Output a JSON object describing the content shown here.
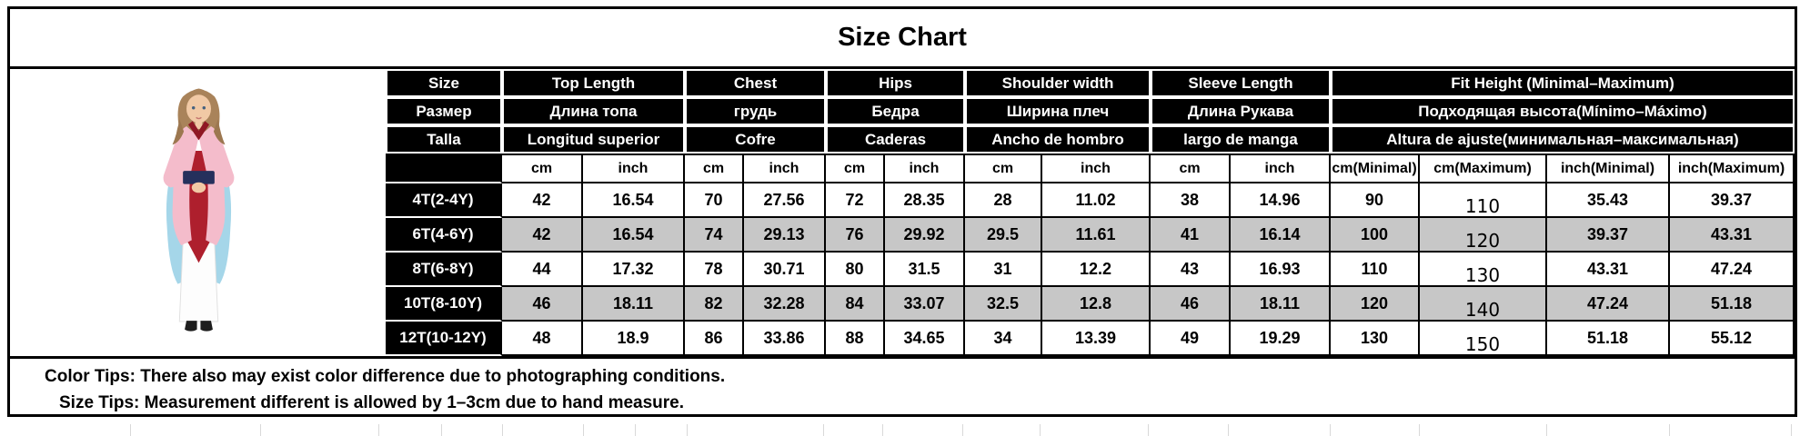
{
  "title": "Size Chart",
  "photo": {
    "alt": "Girl wearing pink, red and blue Mulan-style costume dress"
  },
  "table": {
    "header_rows": [
      {
        "size": "Size",
        "top_length": "Top Length",
        "chest": "Chest",
        "hips": "Hips",
        "shoulder": "Shoulder width",
        "sleeve": "Sleeve Length",
        "fit_height": "Fit Height (Minimal–Maximum)"
      },
      {
        "size": "Размер",
        "top_length": "Длина топа",
        "chest": "грудь",
        "hips": "Бедра",
        "shoulder": "Ширина плеч",
        "sleeve": "Длина Рукава",
        "fit_height": "Подходящая высота(Mínimo–Máximo)"
      },
      {
        "size": "Talla",
        "top_length": "Longitud superior",
        "chest": "Cofre",
        "hips": "Caderas",
        "shoulder": "Ancho de hombro",
        "sleeve": "largo de manga",
        "fit_height": "Altura de ajuste(минимальная–максимальная)"
      }
    ],
    "units_row": [
      "cm",
      "inch",
      "cm",
      "inch",
      "cm",
      "inch",
      "cm",
      "inch",
      "cm",
      "inch",
      "cm(Minimal)",
      "cm(Maximum)",
      "inch(Minimal)",
      "inch(Maximum)"
    ],
    "rows": [
      {
        "size": "4T(2-4Y)",
        "values": [
          "42",
          "16.54",
          "70",
          "27.56",
          "72",
          "28.35",
          "28",
          "11.02",
          "38",
          "14.96",
          "90",
          "110",
          "35.43",
          "39.37"
        ]
      },
      {
        "size": "6T(4-6Y)",
        "values": [
          "42",
          "16.54",
          "74",
          "29.13",
          "76",
          "29.92",
          "29.5",
          "11.61",
          "41",
          "16.14",
          "100",
          "120",
          "39.37",
          "43.31"
        ]
      },
      {
        "size": "8T(6-8Y)",
        "values": [
          "44",
          "17.32",
          "78",
          "30.71",
          "80",
          "31.5",
          "31",
          "12.2",
          "43",
          "16.93",
          "110",
          "130",
          "43.31",
          "47.24"
        ]
      },
      {
        "size": "10T(8-10Y)",
        "values": [
          "46",
          "18.11",
          "82",
          "32.28",
          "84",
          "33.07",
          "32.5",
          "12.8",
          "46",
          "18.11",
          "120",
          "140",
          "47.24",
          "51.18"
        ]
      },
      {
        "size": "12T(10-12Y)",
        "values": [
          "48",
          "18.9",
          "86",
          "33.86",
          "88",
          "34.65",
          "34",
          "13.39",
          "49",
          "19.29",
          "130",
          "150",
          "51.18",
          "55.12"
        ]
      }
    ]
  },
  "tips": {
    "color_tip": "Color Tips: There also may exist color difference due to photographing conditions.",
    "size_tip": "Size Tips: Measurement different is allowed by 1–3cm due to hand measure."
  },
  "colors": {
    "header_bg": "#000000",
    "header_text": "#ffffff",
    "row_alt_bg": "#c7c7c7",
    "border": "#000000",
    "costume_pink": "#f4bccb",
    "costume_red": "#ae1f2d",
    "costume_blue": "#a5d6e9",
    "sash_navy": "#25305c"
  }
}
